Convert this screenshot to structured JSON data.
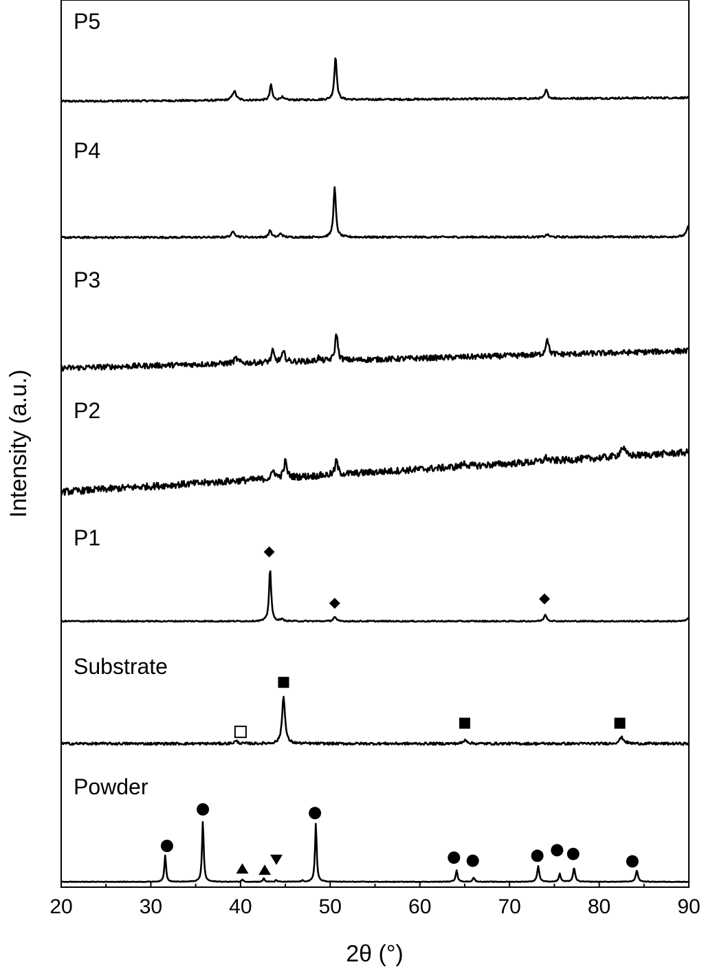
{
  "chart_data": {
    "type": "line",
    "title": "",
    "xlabel": "2θ (°)",
    "ylabel": "Intensity (a.u.)",
    "xlim": [
      20,
      90
    ],
    "xticks": [
      20,
      30,
      40,
      50,
      60,
      70,
      80,
      90
    ],
    "yticks_shown": false,
    "grid": false,
    "legend": "none",
    "series": [
      {
        "name": "P5",
        "baseline": [
          0.3,
          0.88
        ],
        "noise": 0.15,
        "peaks": [
          {
            "x": 39.3,
            "h": 1.5,
            "w": 0.5
          },
          {
            "x": 43.4,
            "h": 2.5,
            "w": 0.3
          },
          {
            "x": 44.6,
            "h": 0.5,
            "w": 0.4
          },
          {
            "x": 50.6,
            "h": 7.0,
            "w": 0.32
          },
          {
            "x": 74.1,
            "h": 1.4,
            "w": 0.35
          }
        ],
        "markers": []
      },
      {
        "name": "P4",
        "baseline": [
          0.3,
          0.4
        ],
        "noise": 0.15,
        "peaks": [
          {
            "x": 39.2,
            "h": 0.9,
            "w": 0.5
          },
          {
            "x": 43.3,
            "h": 1.2,
            "w": 0.3
          },
          {
            "x": 44.5,
            "h": 0.6,
            "w": 0.4
          },
          {
            "x": 50.5,
            "h": 8.0,
            "w": 0.32
          },
          {
            "x": 74.2,
            "h": 0.4,
            "w": 0.4
          },
          {
            "x": 90.0,
            "h": 1.9,
            "w": 0.5
          }
        ],
        "markers": []
      },
      {
        "name": "P3",
        "baseline": [
          0.3,
          3.1
        ],
        "noise": 0.45,
        "peaks": [
          {
            "x": 39.5,
            "h": 0.8,
            "w": 0.5
          },
          {
            "x": 43.6,
            "h": 1.8,
            "w": 0.35
          },
          {
            "x": 44.8,
            "h": 1.5,
            "w": 0.45
          },
          {
            "x": 48.7,
            "h": 0.6,
            "w": 0.3
          },
          {
            "x": 50.7,
            "h": 4.5,
            "w": 0.35
          },
          {
            "x": 74.2,
            "h": 2.8,
            "w": 0.35
          }
        ],
        "markers": []
      },
      {
        "name": "P2",
        "baseline": [
          0.3,
          6.7
        ],
        "noise": 0.55,
        "peaks": [
          {
            "x": 43.7,
            "h": 1.3,
            "w": 0.4
          },
          {
            "x": 45.0,
            "h": 2.6,
            "w": 0.4
          },
          {
            "x": 50.7,
            "h": 2.3,
            "w": 0.35
          },
          {
            "x": 65.0,
            "h": 0.5,
            "w": 0.6
          },
          {
            "x": 74.1,
            "h": 0.6,
            "w": 0.5
          },
          {
            "x": 82.6,
            "h": 1.5,
            "w": 0.6
          }
        ],
        "markers": []
      },
      {
        "name": "P1",
        "baseline": [
          0.3,
          0.3
        ],
        "noise": 0.1,
        "peaks": [
          {
            "x": 43.3,
            "h": 8.5,
            "w": 0.28
          },
          {
            "x": 44.6,
            "h": 0.3,
            "w": 0.4
          },
          {
            "x": 50.5,
            "h": 0.7,
            "w": 0.35
          },
          {
            "x": 74.0,
            "h": 1.1,
            "w": 0.35
          },
          {
            "x": 90.0,
            "h": 0.5,
            "w": 0.5
          }
        ],
        "markers": [
          {
            "shape": "diamond-filled",
            "x": 43.2,
            "y": 11.5
          },
          {
            "shape": "diamond-filled",
            "x": 50.5,
            "y": 3.2
          },
          {
            "shape": "diamond-filled",
            "x": 73.9,
            "y": 3.9
          }
        ]
      },
      {
        "name": "Substrate",
        "baseline": [
          0.3,
          0.3
        ],
        "noise": 0.2,
        "peaks": [
          {
            "x": 39.5,
            "h": 0.4,
            "w": 0.5
          },
          {
            "x": 44.8,
            "h": 7.8,
            "w": 0.38
          },
          {
            "x": 65.1,
            "h": 0.6,
            "w": 0.5
          },
          {
            "x": 82.5,
            "h": 1.0,
            "w": 0.6
          }
        ],
        "markers": [
          {
            "shape": "square-filled",
            "x": 44.8,
            "y": 10.2
          },
          {
            "shape": "square-open",
            "x": 40.0,
            "y": 2.2
          },
          {
            "shape": "square-filled",
            "x": 65.0,
            "y": 3.6
          },
          {
            "shape": "square-filled",
            "x": 82.3,
            "y": 3.6
          }
        ]
      },
      {
        "name": "Powder",
        "baseline": [
          0.2,
          0.2
        ],
        "noise": 0.05,
        "peaks": [
          {
            "x": 31.6,
            "h": 4.3,
            "w": 0.22
          },
          {
            "x": 35.8,
            "h": 9.8,
            "w": 0.22
          },
          {
            "x": 40.2,
            "h": 0.4,
            "w": 0.2
          },
          {
            "x": 42.6,
            "h": 0.6,
            "w": 0.2
          },
          {
            "x": 44.0,
            "h": 0.3,
            "w": 0.2
          },
          {
            "x": 46.9,
            "h": 0.2,
            "w": 0.2
          },
          {
            "x": 48.4,
            "h": 9.5,
            "w": 0.22
          },
          {
            "x": 64.1,
            "h": 1.9,
            "w": 0.25
          },
          {
            "x": 66.0,
            "h": 0.7,
            "w": 0.25
          },
          {
            "x": 73.2,
            "h": 2.5,
            "w": 0.28
          },
          {
            "x": 75.6,
            "h": 1.3,
            "w": 0.25
          },
          {
            "x": 77.2,
            "h": 2.2,
            "w": 0.28
          },
          {
            "x": 84.2,
            "h": 1.8,
            "w": 0.3
          }
        ],
        "markers": [
          {
            "shape": "circle-filled",
            "x": 31.8,
            "y": 6.0
          },
          {
            "shape": "circle-filled",
            "x": 35.8,
            "y": 11.9
          },
          {
            "shape": "triangle-up-filled",
            "x": 40.2,
            "y": 2.3
          },
          {
            "shape": "triangle-up-filled",
            "x": 42.7,
            "y": 2.1
          },
          {
            "shape": "triangle-down-filled",
            "x": 44.0,
            "y": 3.8
          },
          {
            "shape": "circle-filled",
            "x": 48.3,
            "y": 11.3
          },
          {
            "shape": "circle-filled",
            "x": 63.8,
            "y": 4.1
          },
          {
            "shape": "circle-filled",
            "x": 65.9,
            "y": 3.6
          },
          {
            "shape": "circle-filled",
            "x": 73.1,
            "y": 4.4
          },
          {
            "shape": "circle-filled",
            "x": 75.3,
            "y": 5.3
          },
          {
            "shape": "circle-filled",
            "x": 77.1,
            "y": 4.7
          },
          {
            "shape": "circle-filled",
            "x": 83.7,
            "y": 3.5
          }
        ]
      }
    ]
  }
}
